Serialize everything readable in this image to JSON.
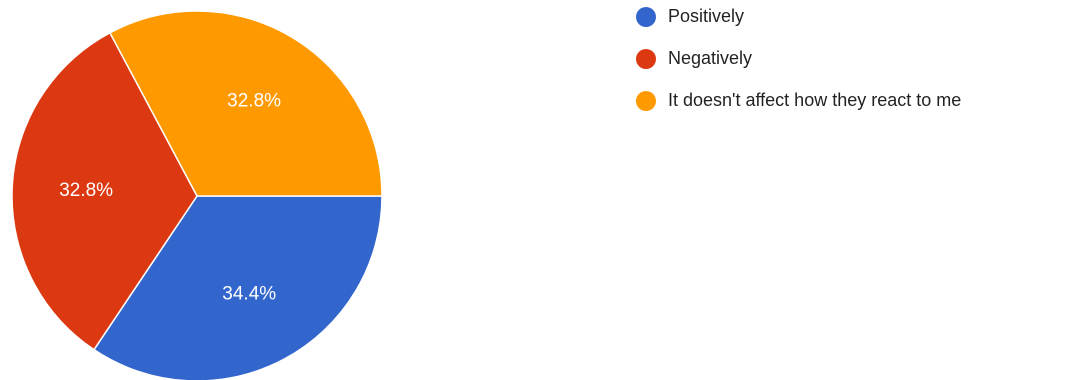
{
  "chart_data": {
    "type": "pie",
    "title": "",
    "slices": [
      {
        "label": "Positively",
        "value": 34.4,
        "display": "34.4%",
        "color": "#3366cc"
      },
      {
        "label": "Negatively",
        "value": 32.8,
        "display": "32.8%",
        "color": "#dc3912"
      },
      {
        "label": "It doesn't affect how they react to me",
        "value": 32.8,
        "display": "32.8%",
        "color": "#ff9900"
      }
    ],
    "legend_position": "right"
  }
}
